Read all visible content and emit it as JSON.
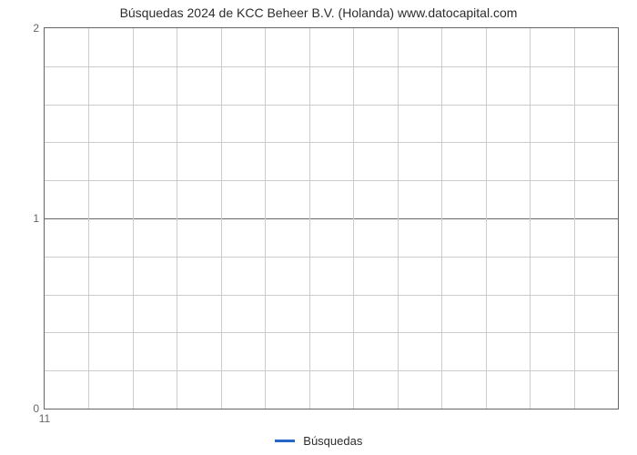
{
  "chart": {
    "type": "line",
    "title": "Búsquedas 2024 de KCC Beheer B.V. (Holanda) www.datocapital.com",
    "title_fontsize": 14,
    "title_color": "#2d2d2d",
    "background_color": "#ffffff",
    "border_color": "#666666",
    "gridline_color": "#cccccc",
    "axis_tick_color": "#666666",
    "axis_label_color": "#666666",
    "axis_label_fontsize": 12,
    "x": {
      "min": 11,
      "max": 24,
      "major_ticks": [
        11
      ],
      "minor_divisions": 13
    },
    "y": {
      "min": 0,
      "max": 2,
      "major_ticks": [
        0,
        1,
        2
      ],
      "minor_divisions": 10
    },
    "series": [
      {
        "name": "Búsquedas",
        "color": "#2766c9",
        "line_width": 3,
        "data": []
      }
    ],
    "legend": {
      "position": "bottom-center",
      "fontsize": 13,
      "text_color": "#2d2d2d"
    }
  }
}
